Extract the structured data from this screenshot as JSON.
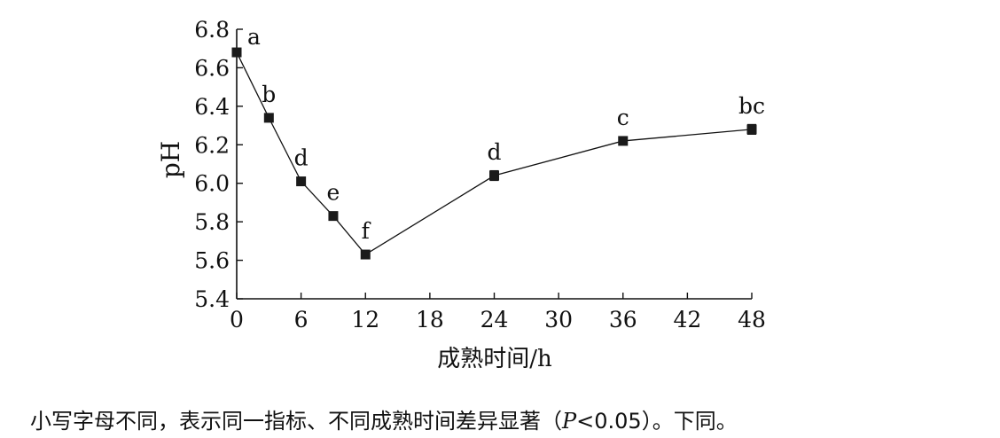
{
  "chart_data": {
    "type": "line",
    "title": "",
    "xlabel": "成熟时间/h",
    "ylabel": "pH",
    "xlim": [
      0,
      48
    ],
    "ylim": [
      5.4,
      6.8
    ],
    "xticks": [
      "0",
      "6",
      "12",
      "18",
      "24",
      "30",
      "36",
      "42",
      "48"
    ],
    "yticks": [
      "5.4",
      "5.6",
      "5.8",
      "6.0",
      "6.2",
      "6.4",
      "6.6",
      "6.8"
    ],
    "grid": false,
    "marker": "square",
    "series": [
      {
        "x": [
          0,
          3,
          6,
          9,
          12,
          24,
          36,
          48
        ],
        "y": [
          6.68,
          6.34,
          6.01,
          5.83,
          5.63,
          6.04,
          6.22,
          6.28
        ],
        "err": [
          0.02,
          0.02,
          0.015,
          0.015,
          0.01,
          0.025,
          0.02,
          0.025
        ],
        "labels": [
          "a",
          "b",
          "d",
          "e",
          "f",
          "d",
          "c",
          "bc"
        ]
      }
    ]
  },
  "caption": {
    "before": "小写字母不同，表示同一指标、不同成熟时间差异显著（",
    "italic": "P",
    "after": "<0.05）。下同。"
  }
}
